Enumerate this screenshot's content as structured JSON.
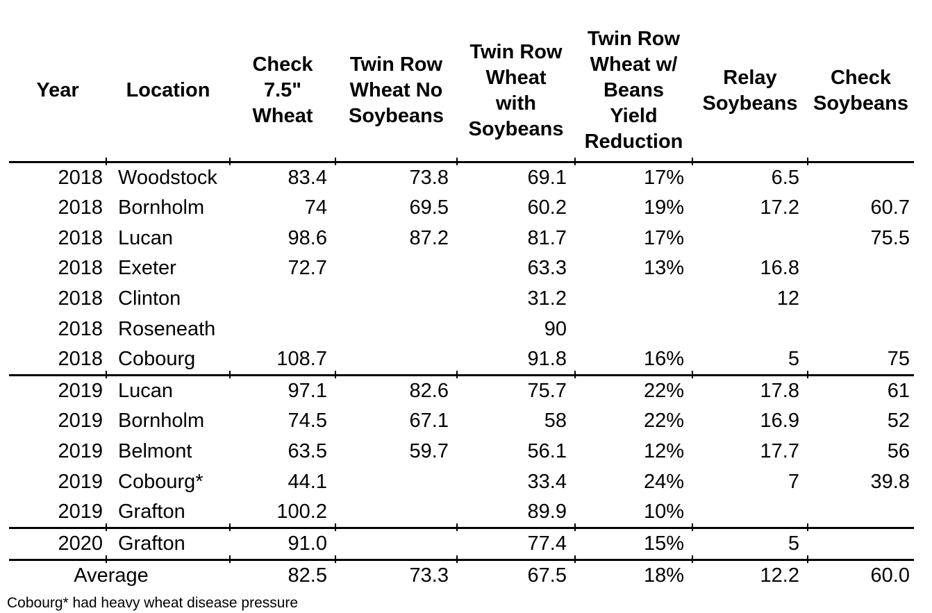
{
  "table": {
    "columns": [
      {
        "id": "year",
        "label": "Year"
      },
      {
        "id": "location",
        "label": "Location"
      },
      {
        "id": "check-wheat",
        "label": "Check\n7.5\"\nWheat"
      },
      {
        "id": "twin-row-wheat-no-soybeans",
        "label": "Twin Row\nWheat No\nSoybeans"
      },
      {
        "id": "twin-row-wheat-with-soybeans",
        "label": "Twin Row\nWheat\nwith\nSoybeans"
      },
      {
        "id": "twin-row-yield-reduction",
        "label": "Twin Row\nWheat w/\nBeans\nYield\nReduction"
      },
      {
        "id": "relay-soybeans",
        "label": "Relay\nSoybeans"
      },
      {
        "id": "check-soybeans",
        "label": "Check\nSoybeans"
      }
    ],
    "rows": [
      {
        "year": "2018",
        "location": "Woodstock",
        "values": [
          "83.4",
          "73.8",
          "69.1",
          "17%",
          "6.5",
          ""
        ],
        "section_start": true
      },
      {
        "year": "2018",
        "location": "Bornholm",
        "values": [
          "74",
          "69.5",
          "60.2",
          "19%",
          "17.2",
          "60.7"
        ],
        "section_start": false
      },
      {
        "year": "2018",
        "location": "Lucan",
        "values": [
          "98.6",
          "87.2",
          "81.7",
          "17%",
          "",
          "75.5"
        ],
        "section_start": false
      },
      {
        "year": "2018",
        "location": "Exeter",
        "values": [
          "72.7",
          "",
          "63.3",
          "13%",
          "16.8",
          ""
        ],
        "section_start": false
      },
      {
        "year": "2018",
        "location": "Clinton",
        "values": [
          "",
          "",
          "31.2",
          "",
          "12",
          ""
        ],
        "section_start": false
      },
      {
        "year": "2018",
        "location": "Roseneath",
        "values": [
          "",
          "",
          "90",
          "",
          "",
          ""
        ],
        "section_start": false
      },
      {
        "year": "2018",
        "location": "Cobourg",
        "values": [
          "108.7",
          "",
          "91.8",
          "16%",
          "5",
          "75"
        ],
        "section_start": false
      },
      {
        "year": "2019",
        "location": "Lucan",
        "values": [
          "97.1",
          "82.6",
          "75.7",
          "22%",
          "17.8",
          "61"
        ],
        "section_start": true
      },
      {
        "year": "2019",
        "location": "Bornholm",
        "values": [
          "74.5",
          "67.1",
          "58",
          "22%",
          "16.9",
          "52"
        ],
        "section_start": false
      },
      {
        "year": "2019",
        "location": "Belmont",
        "values": [
          "63.5",
          "59.7",
          "56.1",
          "12%",
          "17.7",
          "56"
        ],
        "section_start": false
      },
      {
        "year": "2019",
        "location": "Cobourg*",
        "values": [
          "44.1",
          "",
          "33.4",
          "24%",
          "7",
          "39.8"
        ],
        "section_start": false
      },
      {
        "year": "2019",
        "location": "Grafton",
        "values": [
          "100.2",
          "",
          "89.9",
          "10%",
          "",
          ""
        ],
        "section_start": false
      },
      {
        "year": "2020",
        "location": "Grafton",
        "values": [
          "91.0",
          "",
          "77.4",
          "15%",
          "5",
          ""
        ],
        "section_start": true
      }
    ],
    "average": {
      "label": "Average",
      "values": [
        "82.5",
        "73.3",
        "67.5",
        "18%",
        "12.2",
        "60.0"
      ]
    }
  },
  "footnote": "Cobourg* had heavy wheat disease pressure"
}
